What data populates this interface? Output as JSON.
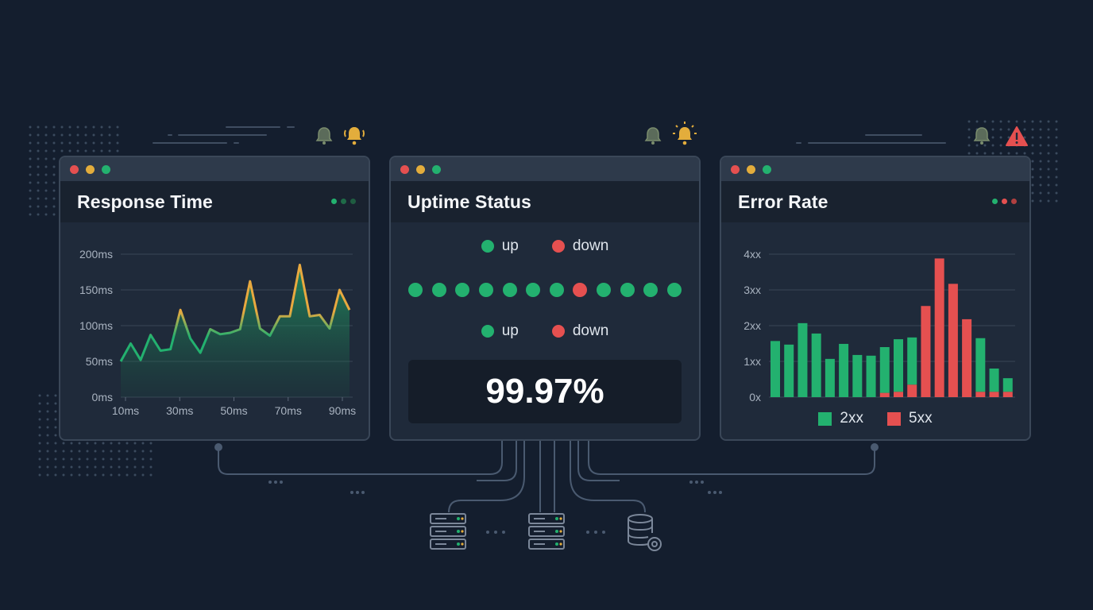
{
  "colors": {
    "background": "#141e2e",
    "panel": "#1f2a3a",
    "green": "#23b16f",
    "red": "#e55050",
    "yellow": "#e3ad3c",
    "orange_line": "#e8a93f"
  },
  "panels": {
    "response_time": {
      "title": "Response Time",
      "chart_data": {
        "type": "area",
        "x_tick_labels": [
          "10ms",
          "30ms",
          "50ms",
          "70ms",
          "90ms"
        ],
        "y_tick_labels": [
          "0ms",
          "50ms",
          "100ms",
          "150ms",
          "200ms"
        ],
        "ylim": [
          0,
          200
        ],
        "values": [
          50,
          75,
          52,
          87,
          65,
          67,
          122,
          82,
          62,
          95,
          88,
          90,
          95,
          162,
          96,
          86,
          113,
          113,
          185,
          113,
          115,
          96,
          150,
          122
        ]
      }
    },
    "uptime": {
      "title": "Uptime Status",
      "legend_top": {
        "up": "up",
        "down": "down"
      },
      "legend_bottom": {
        "up": "up",
        "down": "down"
      },
      "status_dots": [
        "up",
        "up",
        "up",
        "up",
        "up",
        "up",
        "up",
        "down",
        "up",
        "up",
        "up",
        "up"
      ],
      "uptime_value": "99.97%"
    },
    "error_rate": {
      "title": "Error Rate",
      "chart_data": {
        "type": "bar",
        "y_tick_labels": [
          "0x",
          "1xx",
          "2xx",
          "3xx",
          "4xx"
        ],
        "ylim": [
          0,
          4
        ],
        "series": [
          {
            "name": "2xx",
            "values": [
              1.57,
              1.47,
              2.07,
              1.78,
              1.07,
              1.49,
              1.18,
              1.16,
              1.28,
              1.47,
              1.32,
              0,
              0,
              0,
              0,
              1.5,
              0.65,
              0.38
            ]
          },
          {
            "name": "5xx",
            "values": [
              0,
              0,
              0,
              0,
              0,
              0,
              0,
              0,
              0.12,
              0.15,
              0.35,
              2.55,
              3.88,
              3.17,
              2.18,
              0.15,
              0.15,
              0.15
            ]
          }
        ],
        "legend": [
          "2xx",
          "5xx"
        ]
      }
    }
  }
}
